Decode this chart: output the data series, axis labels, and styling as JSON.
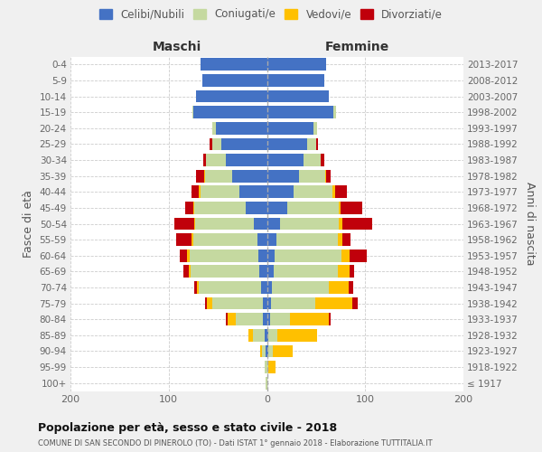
{
  "age_groups": [
    "100+",
    "95-99",
    "90-94",
    "85-89",
    "80-84",
    "75-79",
    "70-74",
    "65-69",
    "60-64",
    "55-59",
    "50-54",
    "45-49",
    "40-44",
    "35-39",
    "30-34",
    "25-29",
    "20-24",
    "15-19",
    "10-14",
    "5-9",
    "0-4"
  ],
  "birth_years": [
    "≤ 1917",
    "1918-1922",
    "1923-1927",
    "1928-1932",
    "1933-1937",
    "1938-1942",
    "1943-1947",
    "1948-1952",
    "1953-1957",
    "1958-1962",
    "1963-1967",
    "1968-1972",
    "1973-1977",
    "1978-1982",
    "1983-1987",
    "1988-1992",
    "1993-1997",
    "1998-2002",
    "2003-2007",
    "2008-2012",
    "2013-2017"
  ],
  "maschi": {
    "celibi": [
      0,
      0,
      1,
      2,
      4,
      4,
      6,
      8,
      9,
      10,
      13,
      22,
      28,
      35,
      42,
      46,
      52,
      75,
      72,
      66,
      68
    ],
    "coniugati": [
      1,
      2,
      4,
      12,
      28,
      52,
      63,
      70,
      70,
      65,
      60,
      52,
      40,
      28,
      20,
      10,
      4,
      1,
      0,
      0,
      0
    ],
    "vedovi": [
      0,
      0,
      2,
      5,
      8,
      5,
      2,
      2,
      2,
      2,
      1,
      1,
      1,
      1,
      0,
      0,
      0,
      0,
      0,
      0,
      0
    ],
    "divorziati": [
      0,
      0,
      0,
      0,
      2,
      2,
      3,
      5,
      8,
      15,
      20,
      8,
      8,
      8,
      3,
      2,
      0,
      0,
      0,
      0,
      0
    ]
  },
  "femmine": {
    "nubili": [
      0,
      0,
      1,
      1,
      3,
      4,
      5,
      7,
      8,
      10,
      13,
      21,
      27,
      33,
      37,
      41,
      47,
      68,
      63,
      58,
      60
    ],
    "coniugate": [
      0,
      1,
      5,
      10,
      20,
      45,
      58,
      65,
      68,
      62,
      60,
      52,
      40,
      26,
      18,
      9,
      4,
      2,
      0,
      0,
      0
    ],
    "vedove": [
      0,
      8,
      20,
      40,
      40,
      38,
      20,
      12,
      8,
      5,
      4,
      2,
      2,
      1,
      0,
      0,
      0,
      0,
      0,
      0,
      0
    ],
    "divorziate": [
      0,
      0,
      0,
      0,
      2,
      5,
      5,
      5,
      18,
      8,
      30,
      22,
      12,
      5,
      3,
      2,
      0,
      0,
      0,
      0,
      0
    ]
  },
  "colors": {
    "celibi_nubili": "#4472c4",
    "coniugati": "#c5d9a0",
    "vedovi": "#ffc000",
    "divorziati": "#c0000b"
  },
  "xlim": [
    -200,
    200
  ],
  "xticks": [
    -200,
    -100,
    0,
    100,
    200
  ],
  "xticklabels": [
    "200",
    "100",
    "0",
    "100",
    "200"
  ],
  "title": "Popolazione per età, sesso e stato civile - 2018",
  "subtitle": "COMUNE DI SAN SECONDO DI PINEROLO (TO) - Dati ISTAT 1° gennaio 2018 - Elaborazione TUTTITALIA.IT",
  "ylabel": "Fasce di età",
  "ylabel_right": "Anni di nascita",
  "legend_labels": [
    "Celibi/Nubili",
    "Coniugati/e",
    "Vedovi/e",
    "Divorziati/e"
  ],
  "maschi_label": "Maschi",
  "femmine_label": "Femmine",
  "bg_color": "#f0f0f0",
  "plot_bg": "#ffffff"
}
